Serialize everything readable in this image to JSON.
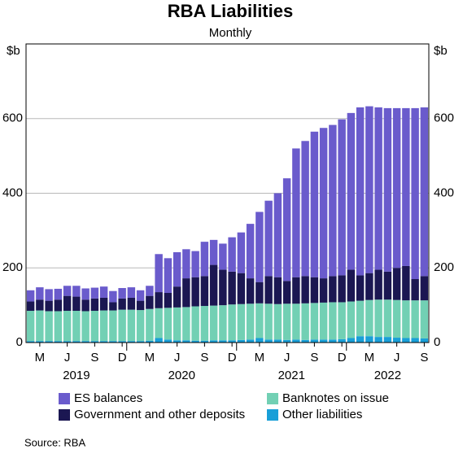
{
  "chart_data": {
    "type": "stacked_bar",
    "title": "RBA Liabilities",
    "subtitle": "Monthly",
    "y_unit": "$b",
    "source": "Source:   RBA",
    "categories": [
      null,
      "M",
      null,
      null,
      "J",
      null,
      null,
      "S",
      null,
      null,
      "D",
      null,
      null,
      "M",
      null,
      null,
      "J",
      null,
      null,
      "S",
      null,
      null,
      "D",
      null,
      null,
      "M",
      null,
      null,
      "J",
      null,
      null,
      "S",
      null,
      null,
      "D",
      null,
      null,
      "M",
      null,
      null,
      "J",
      null,
      null,
      "S"
    ],
    "years": [
      "2019",
      "2020",
      "2021",
      "2022"
    ],
    "ylim": [
      0,
      800
    ],
    "yticks": [
      0,
      200,
      400,
      600
    ],
    "grid": true,
    "series": [
      {
        "name": "ES balances",
        "color": "#6a5bcc",
        "values": [
          30,
          33,
          31,
          29,
          27,
          29,
          30,
          29,
          30,
          30,
          28,
          28,
          28,
          27,
          102,
          93,
          92,
          78,
          70,
          92,
          67,
          70,
          92,
          109,
          146,
          188,
          202,
          225,
          275,
          345,
          362,
          390,
          403,
          405,
          418,
          420,
          450,
          447,
          435,
          438,
          428,
          423,
          458,
          452
        ]
      },
      {
        "name": "Banknotes on issue",
        "color": "#72d0b4",
        "values": [
          81,
          82,
          80,
          80,
          81,
          81,
          80,
          81,
          82,
          82,
          84,
          84,
          83,
          85,
          80,
          85,
          88,
          89,
          92,
          93,
          93,
          94,
          96,
          96,
          96,
          93,
          96,
          95,
          97,
          96,
          98,
          98,
          99,
          100,
          99,
          98,
          95,
          97,
          100,
          100,
          101,
          101,
          101,
          102
        ]
      },
      {
        "name": "Government and other deposits",
        "color": "#1b1752",
        "values": [
          25,
          29,
          28,
          31,
          40,
          38,
          31,
          33,
          34,
          22,
          30,
          32,
          25,
          35,
          43,
          40,
          56,
          77,
          78,
          80,
          109,
          95,
          88,
          83,
          68,
          57,
          74,
          72,
          61,
          71,
          73,
          69,
          65,
          70,
          72,
          85,
          68,
          72,
          80,
          75,
          86,
          92,
          57,
          65
        ]
      },
      {
        "name": "Other liabilities",
        "color": "#199fd8",
        "values": [
          4,
          4,
          4,
          4,
          4,
          4,
          4,
          4,
          4,
          4,
          4,
          4,
          4,
          5,
          12,
          8,
          6,
          6,
          5,
          5,
          6,
          6,
          6,
          7,
          8,
          12,
          8,
          8,
          7,
          8,
          7,
          8,
          8,
          8,
          9,
          12,
          17,
          17,
          15,
          15,
          13,
          12,
          12,
          11
        ]
      }
    ]
  }
}
